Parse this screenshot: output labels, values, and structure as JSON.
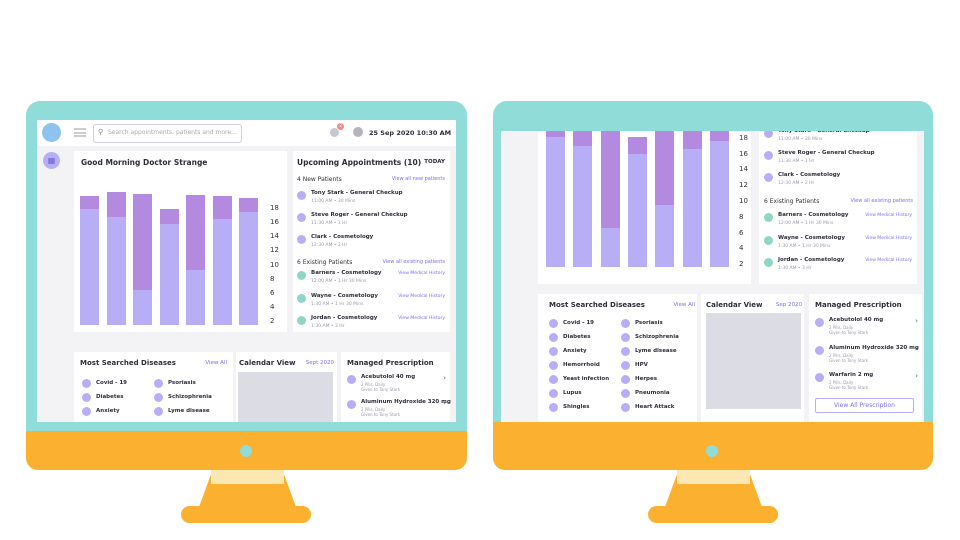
{
  "search": {
    "placeholder": "Search appointments, patients and more..."
  },
  "header": {
    "date": "25 Sep 2020 10:30 AM",
    "notification_count": "2"
  },
  "greeting": "Good Morning Doctor Strange",
  "chart_data": {
    "type": "bar",
    "title": "",
    "y_ticks": [
      18,
      16,
      14,
      12,
      10,
      8,
      6,
      4,
      2
    ],
    "ylim": [
      0,
      20
    ],
    "series": [
      {
        "values": [
          16.5,
          15.3,
          5.0,
          14.3,
          7.8,
          15.0,
          16.0
        ]
      },
      {
        "values": [
          1.8,
          3.5,
          13.6,
          2.2,
          10.6,
          3.3,
          2.0
        ]
      }
    ]
  },
  "appointments": {
    "title": "Upcoming Appointments (10)",
    "today": "TODAY",
    "new_label": "4 New Patients",
    "new_link": "View all new patients",
    "new": [
      {
        "name": "Tony Stark - General Checkup",
        "time": "11:00 AM  •  30 Mins"
      },
      {
        "name": "Steve Roger - General Checkup",
        "time": "11:30 AM  •  1 Hr"
      },
      {
        "name": "Clark - Cosmetology",
        "time": "12:30 AM  •  2 Hr"
      }
    ],
    "existing_label": "6 Existing Patients",
    "existing_link": "View all existing patients",
    "existing": [
      {
        "name": "Barners - Cosmetology",
        "time": "12:00 AM  •  1 Hr 30 Mins",
        "action": "View Medical History"
      },
      {
        "name": "Wayne - Cosmetology",
        "time": "1:30 AM  •  1 Hr 30 Mins",
        "action": "View Medical History"
      },
      {
        "name": "Jordan - Cosmetology",
        "time": "1:30 AM  •  3 Hr",
        "action": "View Medical History"
      }
    ]
  },
  "diseases": {
    "title": "Most Searched Diseases",
    "link": "View All",
    "col1": [
      "Covid - 19",
      "Diabetes",
      "Anxiety",
      "Hemorrhoid",
      "Yeast infection",
      "Lupus",
      "Shingles"
    ],
    "col2": [
      "Psoriasis",
      "Schizophrenia",
      "Lyme disease",
      "HPV",
      "Herpes",
      "Pneumonia",
      "Heart Attack"
    ]
  },
  "calendar": {
    "title": "Calendar View",
    "month": "Sept 2020",
    "month_short": "Sep 2020"
  },
  "prescription": {
    "title": "Managed Prescription",
    "items": [
      {
        "name": "Acebutolol 40 mg",
        "dose": "2 Pills, Daily",
        "by": "Given to Tony Stark"
      },
      {
        "name": "Aluminum Hydroxide 320 mg",
        "dose": "2 Pills, Daily",
        "by": "Given to Tony Stark"
      },
      {
        "name": "Warfarin 2 mg",
        "dose": "2 Pills, Daily",
        "by": "Given to Tony Stark"
      }
    ],
    "view_all": "View All Prescription"
  },
  "colors": {
    "bezel": "#90dcd9",
    "stand": "#fbb02f",
    "bar_lower": "#b7aef5",
    "bar_upper": "#b48ae0",
    "accent": "#7a6ff0"
  }
}
